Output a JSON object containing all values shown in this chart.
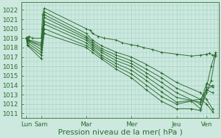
{
  "background_color": "#cce8df",
  "grid_color": "#99ccbb",
  "line_color": "#2d6a2d",
  "xlabel": "Pression niveau de la mer( hPa )",
  "xlabel_fontsize": 8,
  "tick_fontsize": 6.5,
  "ylim": [
    1010.5,
    1022.8
  ],
  "yticks": [
    1011,
    1012,
    1013,
    1014,
    1015,
    1016,
    1017,
    1018,
    1019,
    1020,
    1021,
    1022
  ],
  "day_labels": [
    "Lun",
    "Sam",
    "Mar",
    "Mer",
    "Jeu",
    "Ven"
  ],
  "day_positions": [
    0,
    0.5,
    2.0,
    3.5,
    5.0,
    6.0
  ],
  "xlim": [
    -0.15,
    6.4
  ],
  "figsize": [
    3.2,
    2.0
  ],
  "dpi": 100,
  "lines": [
    {
      "x": [
        0,
        0.05,
        0.1,
        0.2,
        0.5,
        0.55,
        0.6,
        2.0,
        2.15,
        2.2,
        2.4,
        2.6,
        3.0,
        3.2,
        3.5,
        3.7,
        3.9,
        4.2,
        4.5,
        5.0,
        5.5,
        5.8,
        6.0,
        6.1,
        6.2,
        6.3
      ],
      "y": [
        1019,
        1019.1,
        1019.2,
        1019.0,
        1019.0,
        1021.5,
        1022.2,
        1020.0,
        1019.8,
        1019.5,
        1019.2,
        1019.0,
        1018.8,
        1018.5,
        1018.3,
        1018.2,
        1018.0,
        1017.8,
        1017.5,
        1017.3,
        1017.1,
        1017.2,
        1017.3,
        1017.4,
        1017.2,
        1017.1
      ]
    },
    {
      "x": [
        0,
        0.05,
        0.1,
        0.5,
        0.6,
        2.0,
        2.2,
        2.5,
        3.0,
        3.5,
        4.0,
        4.5,
        5.0,
        5.8,
        6.0,
        6.2
      ],
      "y": [
        1019,
        1019.0,
        1018.8,
        1018.5,
        1021.8,
        1019.5,
        1018.8,
        1018.2,
        1017.5,
        1017.0,
        1016.2,
        1015.3,
        1014.3,
        1013.2,
        1012.5,
        1011.5
      ]
    },
    {
      "x": [
        0,
        0.05,
        0.1,
        0.5,
        0.6,
        2.0,
        2.2,
        2.5,
        3.0,
        3.5,
        4.0,
        4.5,
        5.0,
        5.8,
        6.0,
        6.2
      ],
      "y": [
        1019,
        1018.9,
        1018.7,
        1018.3,
        1021.5,
        1019.2,
        1018.6,
        1017.9,
        1017.2,
        1016.6,
        1015.7,
        1014.8,
        1013.7,
        1012.5,
        1012.0,
        1011.2
      ]
    },
    {
      "x": [
        0,
        0.05,
        0.5,
        0.6,
        2.0,
        2.2,
        2.5,
        3.0,
        3.5,
        4.0,
        4.5,
        5.0,
        5.8,
        6.0,
        6.2
      ],
      "y": [
        1019,
        1018.8,
        1018.1,
        1021.2,
        1019.0,
        1018.4,
        1017.7,
        1016.9,
        1016.3,
        1015.3,
        1014.3,
        1013.2,
        1012.0,
        1013.5,
        1013.2
      ]
    },
    {
      "x": [
        0,
        0.05,
        0.5,
        0.6,
        2.0,
        2.2,
        2.5,
        3.0,
        3.5,
        4.0,
        4.5,
        5.0,
        5.8,
        6.0,
        6.2
      ],
      "y": [
        1019,
        1018.7,
        1017.8,
        1020.8,
        1018.8,
        1018.2,
        1017.5,
        1016.6,
        1016.0,
        1014.9,
        1013.8,
        1012.7,
        1012.2,
        1014.2,
        1013.8
      ]
    },
    {
      "x": [
        0,
        0.05,
        0.5,
        0.6,
        2.0,
        2.2,
        2.5,
        3.0,
        3.5,
        4.0,
        4.5,
        5.0,
        5.8,
        6.0,
        6.2
      ],
      "y": [
        1019,
        1018.5,
        1017.5,
        1020.5,
        1018.5,
        1018.0,
        1017.2,
        1016.3,
        1015.6,
        1014.5,
        1013.3,
        1012.2,
        1012.5,
        1013.5,
        1014.0
      ]
    },
    {
      "x": [
        0,
        0.05,
        0.5,
        0.6,
        2.0,
        2.2,
        2.5,
        3.0,
        3.5,
        4.0,
        4.5,
        5.0,
        5.5,
        5.8,
        6.0,
        6.15,
        6.3
      ],
      "y": [
        1019,
        1018.3,
        1017.2,
        1020.0,
        1018.2,
        1017.8,
        1017.0,
        1016.0,
        1015.2,
        1014.0,
        1012.8,
        1012.0,
        1012.3,
        1011.5,
        1013.2,
        1014.5,
        1017.3
      ]
    },
    {
      "x": [
        0,
        0.05,
        0.5,
        0.6,
        2.0,
        2.2,
        2.5,
        3.0,
        3.5,
        4.0,
        4.5,
        5.0,
        5.5,
        5.8,
        6.0,
        6.15,
        6.3
      ],
      "y": [
        1019,
        1018.2,
        1016.8,
        1019.5,
        1018.0,
        1017.5,
        1016.8,
        1015.7,
        1014.8,
        1013.5,
        1012.3,
        1011.5,
        1011.5,
        1011.3,
        1013.8,
        1016.0,
        1017.5
      ]
    }
  ]
}
